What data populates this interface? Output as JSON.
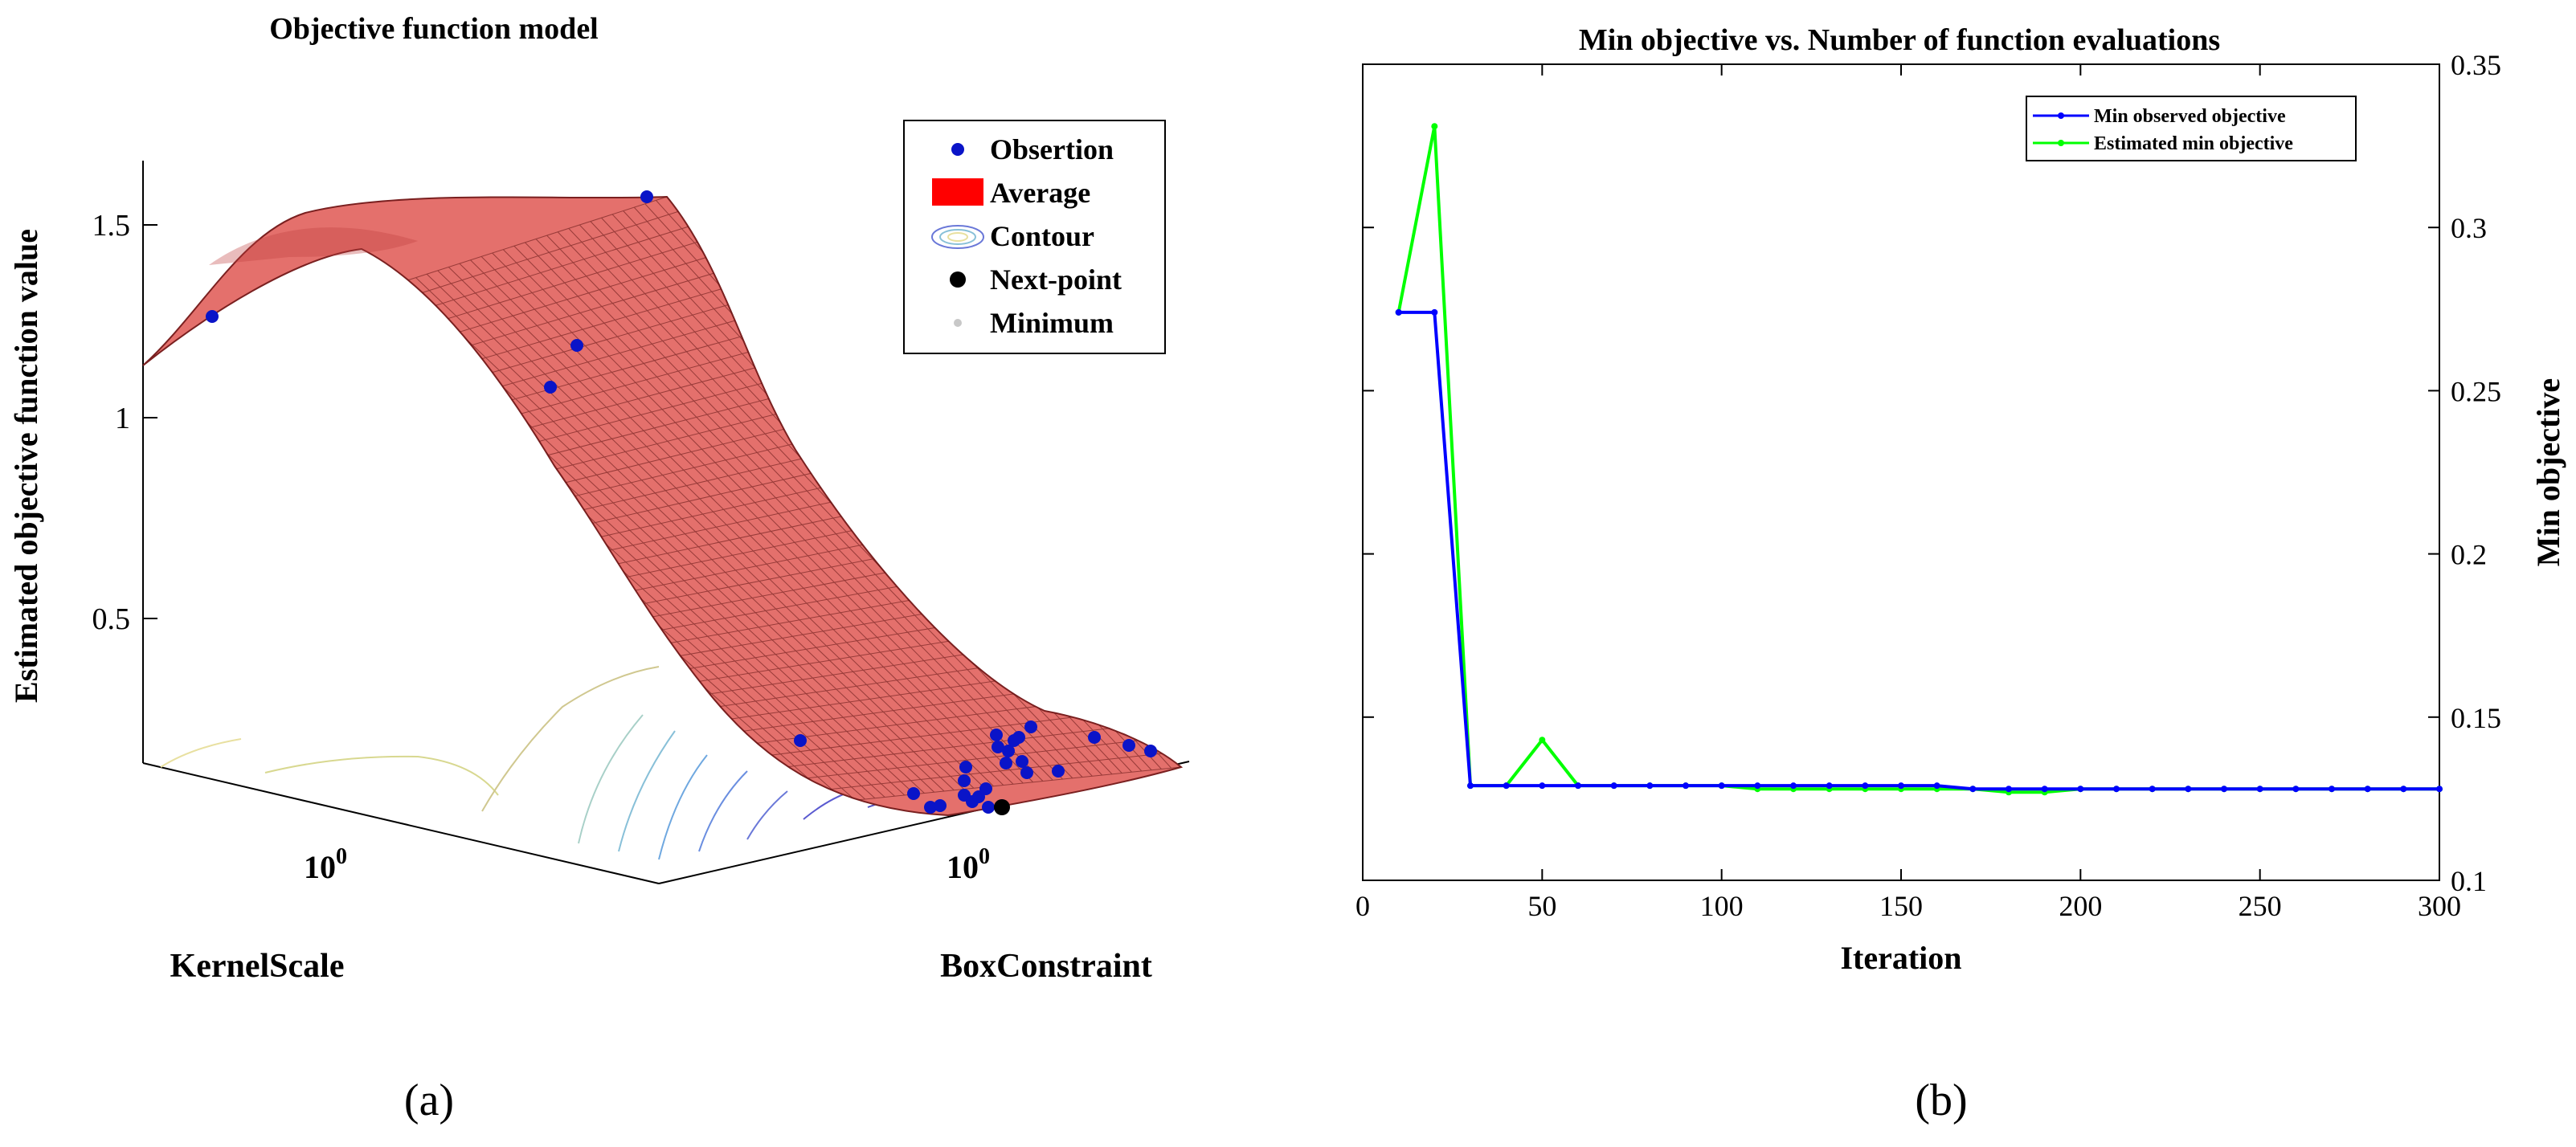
{
  "chart_data": [
    {
      "type": "surface",
      "panel_label": "(a)",
      "title": "Objective function model",
      "zlabel": "Estimated objective function value",
      "xlabel": "KernelScale",
      "ylabel": "BoxConstraint",
      "z_ticks": [
        "0.5",
        "1",
        "1.5"
      ],
      "x_tick": "10",
      "x_tick_exp": "0",
      "y_tick": "10",
      "y_tick_exp": "0",
      "legend": [
        "Obsertion",
        "Average",
        "Contour",
        "Next-point",
        "Minimum"
      ],
      "colors": {
        "surface": "#e4706c",
        "mesh": "#5a1010",
        "observation": "#0a14c8",
        "next_point": "#000000",
        "minimum": "#c8c8c8",
        "legend_avg": "#ff0000"
      },
      "observations_count": 29
    },
    {
      "type": "line",
      "panel_label": "(b)",
      "title": "Min objective vs. Number of function evaluations",
      "xlabel": "Iteration",
      "ylabel": "Min objective",
      "xlim": [
        0,
        300
      ],
      "ylim": [
        0.1,
        0.35
      ],
      "x_ticks": [
        "0",
        "50",
        "100",
        "150",
        "200",
        "250",
        "300"
      ],
      "y_ticks": [
        "0.1",
        "0.15",
        "0.2",
        "0.25",
        "0.3",
        "0.35"
      ],
      "x": [
        10,
        20,
        30,
        40,
        50,
        60,
        70,
        80,
        90,
        100,
        110,
        120,
        130,
        140,
        150,
        160,
        170,
        180,
        190,
        200,
        210,
        220,
        230,
        240,
        250,
        260,
        270,
        280,
        290,
        300
      ],
      "series": [
        {
          "name": "Min observed objective",
          "color": "#0000ff",
          "values": [
            0.274,
            0.274,
            0.129,
            0.129,
            0.129,
            0.129,
            0.129,
            0.129,
            0.129,
            0.129,
            0.129,
            0.129,
            0.129,
            0.129,
            0.129,
            0.129,
            0.128,
            0.128,
            0.128,
            0.128,
            0.128,
            0.128,
            0.128,
            0.128,
            0.128,
            0.128,
            0.128,
            0.128,
            0.128,
            0.128
          ]
        },
        {
          "name": "Estimated min objective",
          "color": "#00ff00",
          "values": [
            0.274,
            0.331,
            0.129,
            0.129,
            0.143,
            0.129,
            0.129,
            0.129,
            0.129,
            0.129,
            0.128,
            0.128,
            0.128,
            0.128,
            0.128,
            0.128,
            0.128,
            0.127,
            0.127,
            0.128,
            0.128,
            0.128,
            0.128,
            0.128,
            0.128,
            0.128,
            0.128,
            0.128,
            0.128,
            0.128
          ]
        }
      ]
    }
  ]
}
